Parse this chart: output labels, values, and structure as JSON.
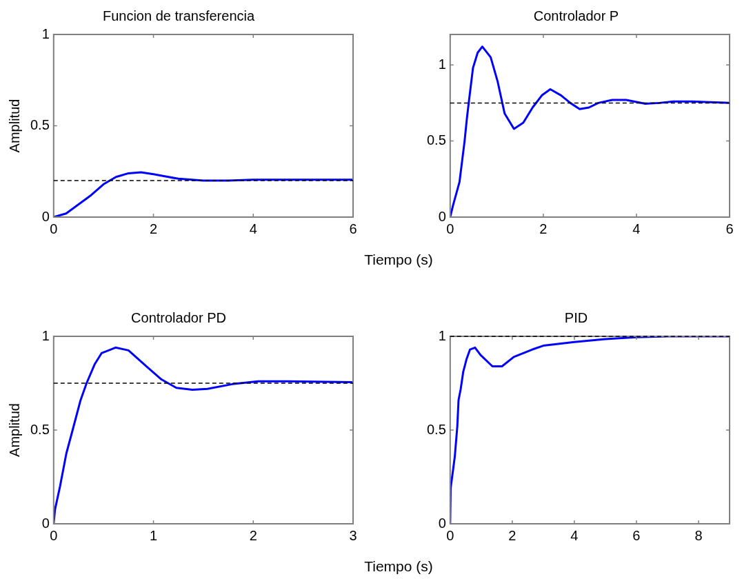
{
  "chart_data": [
    {
      "type": "line",
      "title": "Funcion de transferencia",
      "xlabel": "Tiempo (s)",
      "ylabel": "Amplitud",
      "xlim": [
        0,
        6
      ],
      "xticks": [
        0,
        2,
        4,
        6
      ],
      "ylim": [
        0,
        1
      ],
      "yticks": [
        0,
        0.5,
        1
      ],
      "series": [
        {
          "color": "#0000ff",
          "x": [
            0,
            0.25,
            0.5,
            0.75,
            1,
            1.25,
            1.5,
            1.75,
            2,
            2.5,
            3,
            3.5,
            4,
            6
          ],
          "values": [
            0,
            0.02,
            0.07,
            0.12,
            0.18,
            0.22,
            0.24,
            0.245,
            0.235,
            0.21,
            0.2,
            0.2,
            0.205,
            0.205
          ]
        }
      ],
      "ref_lines": [
        {
          "axis": "y",
          "value": 0.2,
          "color": "#000000",
          "line_style": "dashed"
        }
      ]
    },
    {
      "type": "line",
      "title": "Controlador P",
      "xlim": [
        0,
        6
      ],
      "xticks": [
        0,
        2,
        4,
        6
      ],
      "ylim": [
        0,
        1.2
      ],
      "yticks": [
        0,
        0.5,
        1
      ],
      "series": [
        {
          "color": "#0000ff",
          "x": [
            0,
            0.06,
            0.2,
            0.31,
            0.36,
            0.41,
            0.49,
            0.59,
            0.69,
            0.87,
            1.02,
            1.17,
            1.37,
            1.57,
            1.77,
            1.97,
            2.15,
            2.38,
            2.58,
            2.78,
            2.98,
            3.18,
            3.48,
            3.78,
            4.19,
            4.49,
            4.79,
            5.19,
            6
          ],
          "values": [
            0,
            0.075,
            0.23,
            0.5,
            0.65,
            0.78,
            0.98,
            1.08,
            1.12,
            1.05,
            0.89,
            0.68,
            0.58,
            0.62,
            0.72,
            0.8,
            0.84,
            0.8,
            0.75,
            0.71,
            0.72,
            0.75,
            0.77,
            0.77,
            0.745,
            0.75,
            0.76,
            0.76,
            0.75
          ]
        }
      ],
      "ref_lines": [
        {
          "axis": "y",
          "value": 0.75,
          "color": "#000000",
          "line_style": "dashed"
        }
      ]
    },
    {
      "type": "line",
      "title": "Controlador PD",
      "xlabel": "Tiempo (s)",
      "ylabel": "Amplitud",
      "xlim": [
        0,
        3
      ],
      "xticks": [
        0,
        1,
        2,
        3
      ],
      "ylim": [
        0,
        1
      ],
      "yticks": [
        0,
        0.5,
        1
      ],
      "series": [
        {
          "color": "#0000ff",
          "x": [
            0,
            0.013,
            0.064,
            0.127,
            0.19,
            0.27,
            0.33,
            0.41,
            0.48,
            0.62,
            0.75,
            0.93,
            1.08,
            1.23,
            1.39,
            1.54,
            1.79,
            2.05,
            2.35,
            3
          ],
          "values": [
            0,
            0.075,
            0.2,
            0.375,
            0.5,
            0.66,
            0.75,
            0.85,
            0.91,
            0.94,
            0.925,
            0.84,
            0.77,
            0.725,
            0.715,
            0.72,
            0.745,
            0.76,
            0.76,
            0.755
          ]
        }
      ],
      "ref_lines": [
        {
          "axis": "y",
          "value": 0.75,
          "color": "#000000",
          "line_style": "dashed"
        }
      ]
    },
    {
      "type": "line",
      "title": "PID",
      "xlim": [
        0,
        9
      ],
      "xticks": [
        0,
        2,
        4,
        6,
        8
      ],
      "ylim": [
        0,
        1
      ],
      "yticks": [
        0,
        0.5,
        1
      ],
      "series": [
        {
          "color": "#0000ff",
          "x": [
            0,
            0.015,
            0.08,
            0.15,
            0.23,
            0.27,
            0.34,
            0.42,
            0.53,
            0.64,
            0.8,
            0.98,
            1.36,
            1.67,
            2.05,
            2.65,
            3,
            4,
            5,
            6,
            7,
            9
          ],
          "values": [
            0,
            0.19,
            0.27,
            0.36,
            0.52,
            0.66,
            0.72,
            0.81,
            0.88,
            0.93,
            0.94,
            0.9,
            0.84,
            0.84,
            0.89,
            0.93,
            0.95,
            0.97,
            0.985,
            0.995,
            1,
            1
          ]
        }
      ],
      "ref_lines": [
        {
          "axis": "y",
          "value": 1,
          "color": "#000000",
          "line_style": "dashed"
        }
      ]
    }
  ]
}
